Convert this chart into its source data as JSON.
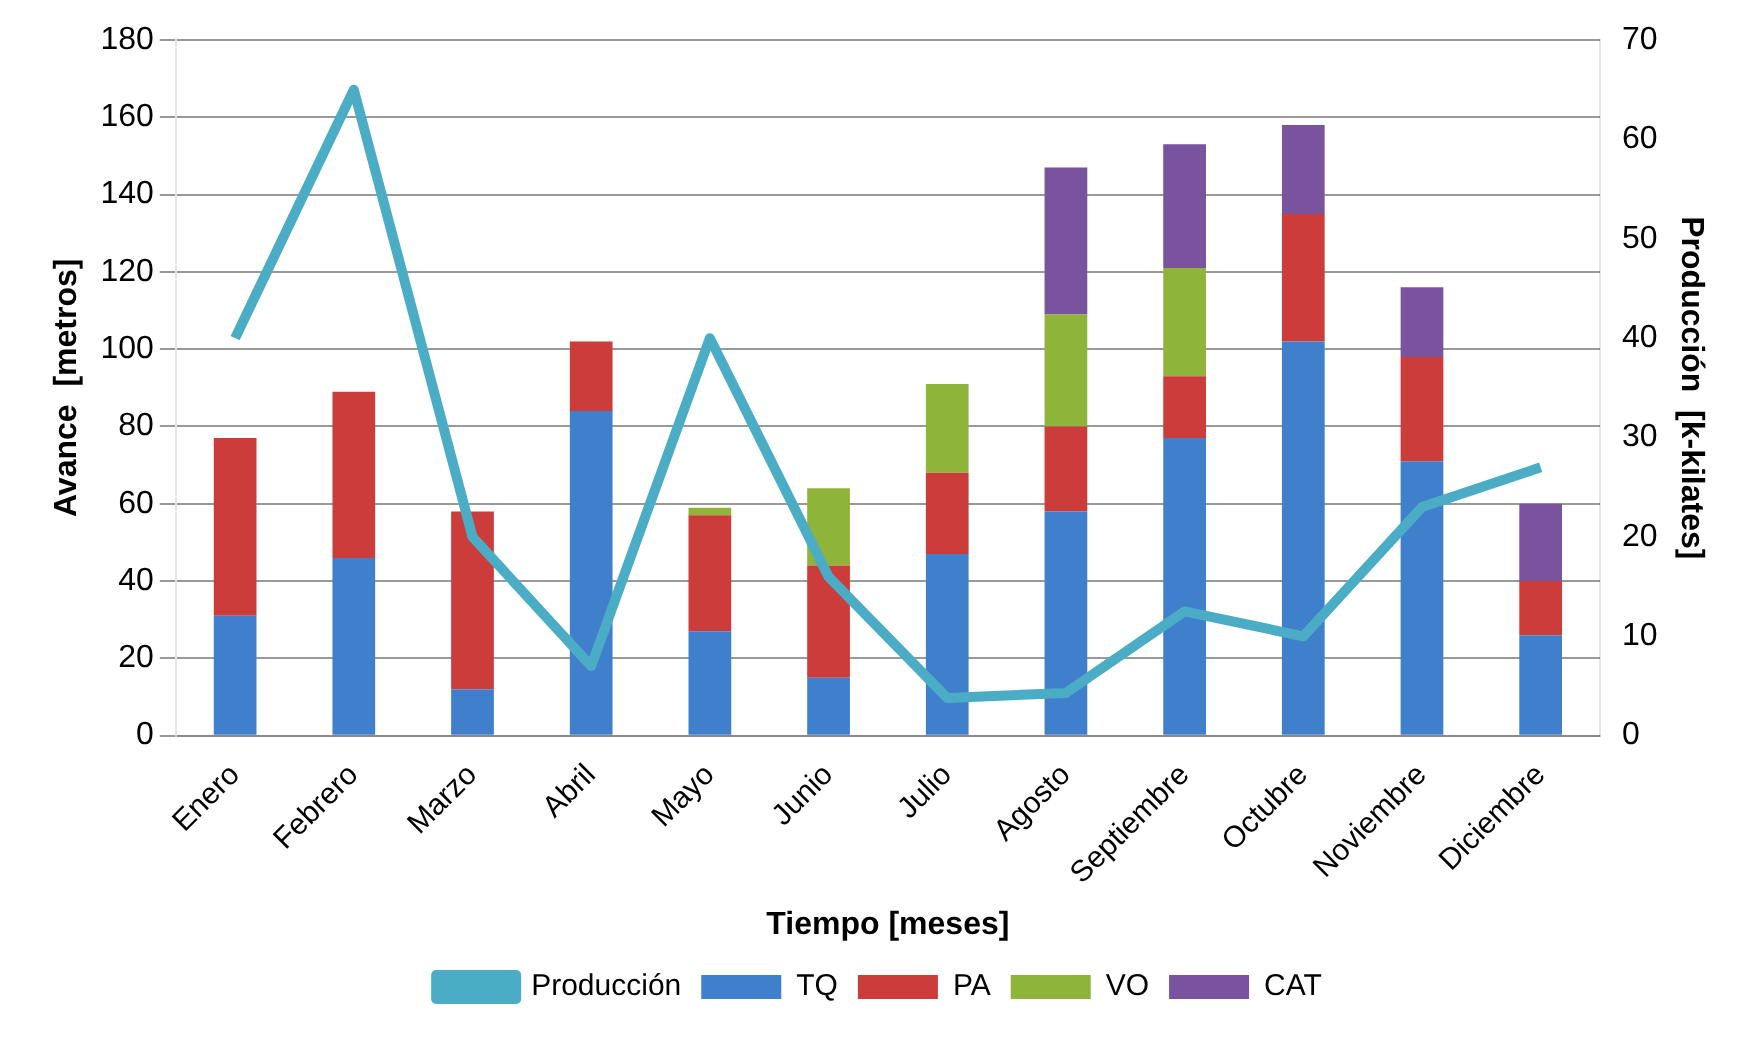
{
  "chart_data": {
    "type": "bar",
    "stacked": true,
    "xlabel": "Tiempo [meses]",
    "ylabel": "Avance  [metros]",
    "y2label": "Producción  [k-kilates]",
    "categories": [
      "Enero",
      "Febrero",
      "Marzo",
      "Abril",
      "Mayo",
      "Junio",
      "Julio",
      "Agosto",
      "Septiembre",
      "Octubre",
      "Noviembre",
      "Diciembre"
    ],
    "series": [
      {
        "name": "TQ",
        "color": "#3f7fcc",
        "values": [
          31,
          46,
          12,
          84,
          27,
          15,
          47,
          58,
          77,
          102,
          71,
          26
        ]
      },
      {
        "name": "PA",
        "color": "#cc3c3a",
        "values": [
          46,
          43,
          46,
          18,
          30,
          29,
          21,
          22,
          16,
          33,
          27,
          14
        ]
      },
      {
        "name": "VO",
        "color": "#8fb43a",
        "values": [
          0,
          0,
          0,
          0,
          2,
          20,
          23,
          29,
          28,
          0,
          0,
          0
        ]
      },
      {
        "name": "CAT",
        "color": "#7a539e",
        "values": [
          0,
          0,
          0,
          0,
          0,
          0,
          0,
          38,
          32,
          23,
          18,
          20
        ]
      },
      {
        "name": "Producción",
        "type": "line",
        "axis": "y2",
        "color": "#4bacc6",
        "values": [
          40,
          65,
          20,
          7,
          40,
          16,
          3.8,
          4.3,
          12.5,
          10,
          23,
          27
        ]
      }
    ],
    "ylim": [
      0,
      180
    ],
    "yticks": [
      0,
      20,
      40,
      60,
      80,
      100,
      120,
      140,
      160,
      180
    ],
    "y2lim": [
      0,
      70
    ],
    "y2ticks": [
      0,
      10,
      20,
      30,
      40,
      50,
      60,
      70
    ],
    "grid": "y",
    "legend": "bottom",
    "marker": "none"
  }
}
